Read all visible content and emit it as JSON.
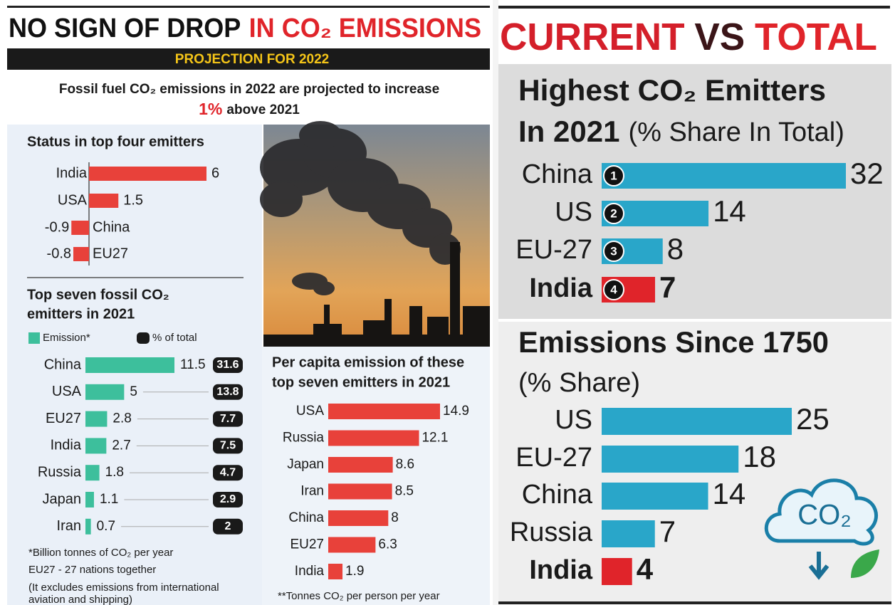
{
  "left_panel": {
    "title": [
      "NO SIGN OF DROP",
      "IN CO₂ EMISSIONS"
    ],
    "banner": "PROJECTION FOR 2022",
    "intro": {
      "line1": "Fossil fuel CO₂ emissions in 2022 are projected to increase",
      "highlight": "1%",
      "rest": "above 2021"
    },
    "notes": [
      "*Billion tonnes of CO₂ per year",
      "EU27 - 27 nations together",
      "(It excludes emissions from international",
      "aviation and shipping)"
    ]
  },
  "right_panel": {
    "title": [
      "CURRENT",
      "VS",
      "TOTAL"
    ],
    "icon_text": "CO₂"
  },
  "chart_data": [
    {
      "type": "diverging-bar",
      "title": "Status in top four emitters",
      "categories": [
        "India",
        "USA",
        "China",
        "EU27"
      ],
      "values": [
        6,
        1.5,
        -0.9,
        -0.8
      ],
      "color": "#e8413a"
    },
    {
      "type": "bar-badge",
      "title_lines": [
        "Top seven fossil CO₂",
        "emitters in 2021"
      ],
      "categories": [
        "China",
        "USA",
        "EU27",
        "India",
        "Russia",
        "Japan",
        "Iran"
      ],
      "series": [
        {
          "name": "Emission*",
          "color": "#3dbf9c",
          "values": [
            11.5,
            5,
            2.8,
            2.7,
            1.8,
            1.1,
            0.7
          ]
        },
        {
          "name": "% of total",
          "color": "#1a1a1a",
          "values": [
            31.6,
            13.8,
            7.7,
            7.5,
            4.7,
            2.9,
            2
          ]
        }
      ],
      "legend": "top-left"
    },
    {
      "type": "bar",
      "title_lines": [
        "Per capita emission of these",
        "top seven emitters in 2021"
      ],
      "categories": [
        "USA",
        "Russia",
        "Japan",
        "Iran",
        "China",
        "EU27",
        "India"
      ],
      "values": [
        14.9,
        12.1,
        8.6,
        8.5,
        8,
        6.3,
        1.9
      ],
      "color": "#e8413a",
      "note": "**Tonnes CO₂ per person per year"
    },
    {
      "type": "ranked-bar",
      "title_lines": [
        "Highest CO₂ Emitters",
        "In 2021"
      ],
      "subtitle": "(% Share In Total)",
      "categories": [
        "China",
        "US",
        "EU-27",
        "India"
      ],
      "ranks": [
        1,
        2,
        3,
        4
      ],
      "values": [
        32,
        14,
        8,
        7
      ],
      "colors": [
        "#29a6c9",
        "#29a6c9",
        "#29a6c9",
        "#e0242a"
      ]
    },
    {
      "type": "bar-large",
      "title": "Emissions Since 1750",
      "subtitle": "(% Share)",
      "categories": [
        "US",
        "EU-27",
        "China",
        "Russia",
        "India"
      ],
      "values": [
        25,
        18,
        14,
        7,
        4
      ],
      "colors": [
        "#29a6c9",
        "#29a6c9",
        "#29a6c9",
        "#29a6c9",
        "#e0242a"
      ]
    }
  ]
}
